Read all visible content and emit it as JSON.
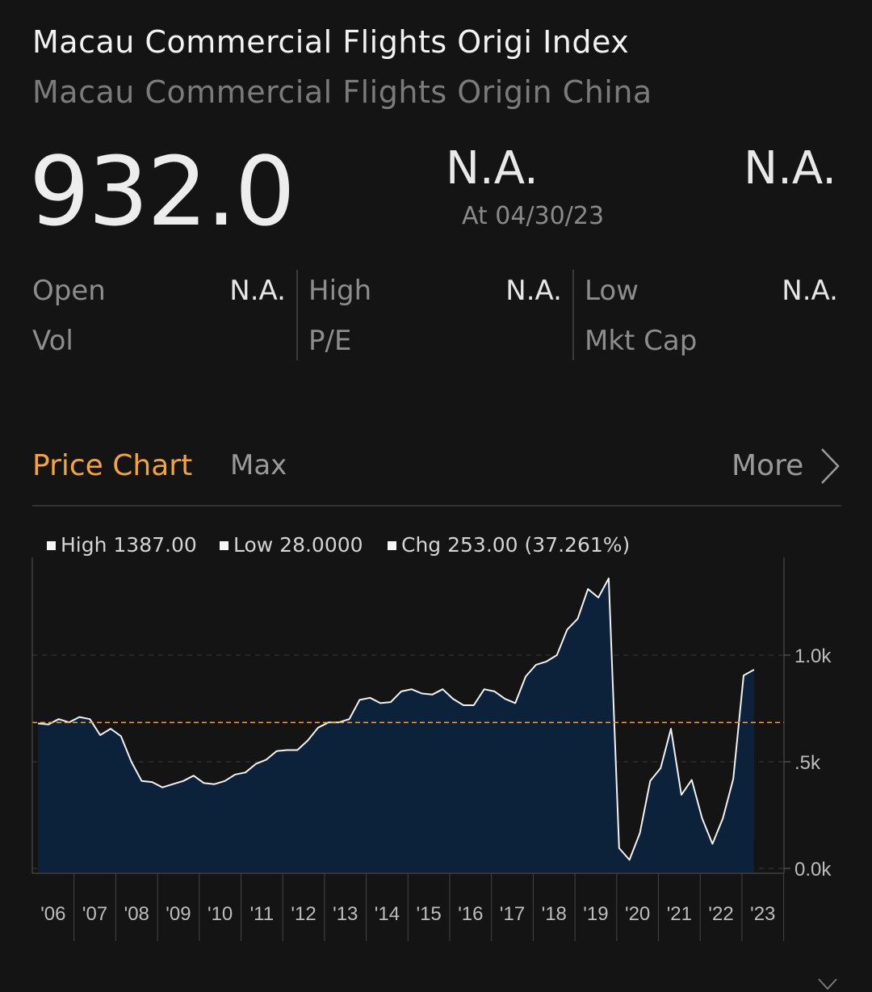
{
  "header": {
    "title": "Macau Commercial Flights Origi Index",
    "subtitle": "Macau Commercial Flights Origin China"
  },
  "quote": {
    "price": "932.0",
    "change": "N.A.",
    "change_pct": "N.A.",
    "as_of": "At 04/30/23"
  },
  "stats": {
    "open_label": "Open",
    "open_value": "N.A.",
    "high_label": "High",
    "high_value": "N.A.",
    "low_label": "Low",
    "low_value": "N.A.",
    "vol_label": "Vol",
    "pe_label": "P/E",
    "mktcap_label": "Mkt Cap"
  },
  "tabs": {
    "active": "Price Chart",
    "range": "Max",
    "more": "More"
  },
  "legend": {
    "high": "High 1387.00",
    "low": "Low 28.0000",
    "chg": "Chg 253.00 (37.261%)"
  },
  "colors": {
    "accent": "#f5a43a",
    "area_fill": "#0c223b",
    "line": "#f2f2f2",
    "reference_line": "#f5a43a",
    "background": "#141414"
  },
  "icons": [
    "chevron-right-icon",
    "chevron-down-icon"
  ],
  "chart_data": {
    "type": "area",
    "title": "",
    "xlabel": "",
    "ylabel": "",
    "ylim": [
      0,
      1400
    ],
    "y_ticks": [
      {
        "value": 1000,
        "label": "1.0k"
      },
      {
        "value": 500,
        "label": ".5k"
      },
      {
        "value": 0,
        "label": "0.0k"
      }
    ],
    "x_ticks": [
      "'06",
      "'07",
      "'08",
      "'09",
      "'10",
      "'11",
      "'12",
      "'13",
      "'14",
      "'15",
      "'16",
      "'17",
      "'18",
      "'19",
      "'20",
      "'21",
      "'22",
      "'23"
    ],
    "reference_line": 684,
    "grid": true,
    "series": [
      {
        "x": [
          2006.0,
          2006.25,
          2006.5,
          2006.75,
          2007.0,
          2007.25,
          2007.5,
          2007.75,
          2008.0,
          2008.25,
          2008.5,
          2008.75,
          2009.0,
          2009.25,
          2009.5,
          2009.75,
          2010.0,
          2010.25,
          2010.5,
          2010.75,
          2011.0,
          2011.25,
          2011.5,
          2011.75,
          2012.0,
          2012.25,
          2012.5,
          2012.75,
          2013.0,
          2013.25,
          2013.5,
          2013.75,
          2014.0,
          2014.25,
          2014.5,
          2014.75,
          2015.0,
          2015.25,
          2015.5,
          2015.75,
          2016.0,
          2016.25,
          2016.5,
          2016.75,
          2017.0,
          2017.25,
          2017.5,
          2017.75,
          2018.0,
          2018.25,
          2018.5,
          2018.75,
          2019.0,
          2019.25,
          2019.5,
          2019.75,
          2020.0,
          2020.25,
          2020.5,
          2020.75,
          2021.0,
          2021.25,
          2021.5,
          2021.75,
          2022.0,
          2022.25,
          2022.5,
          2022.75,
          2023.0,
          2023.25
        ],
        "values": [
          680,
          675,
          700,
          685,
          710,
          700,
          625,
          655,
          620,
          500,
          410,
          405,
          380,
          395,
          410,
          435,
          400,
          395,
          410,
          440,
          450,
          490,
          510,
          550,
          555,
          555,
          600,
          660,
          685,
          685,
          700,
          790,
          800,
          775,
          780,
          830,
          840,
          820,
          815,
          840,
          795,
          765,
          765,
          840,
          830,
          795,
          775,
          900,
          955,
          970,
          1000,
          1120,
          1170,
          1310,
          1270,
          1360,
          95,
          40,
          165,
          410,
          470,
          655,
          345,
          415,
          235,
          115,
          235,
          420,
          905,
          932
        ]
      }
    ]
  }
}
